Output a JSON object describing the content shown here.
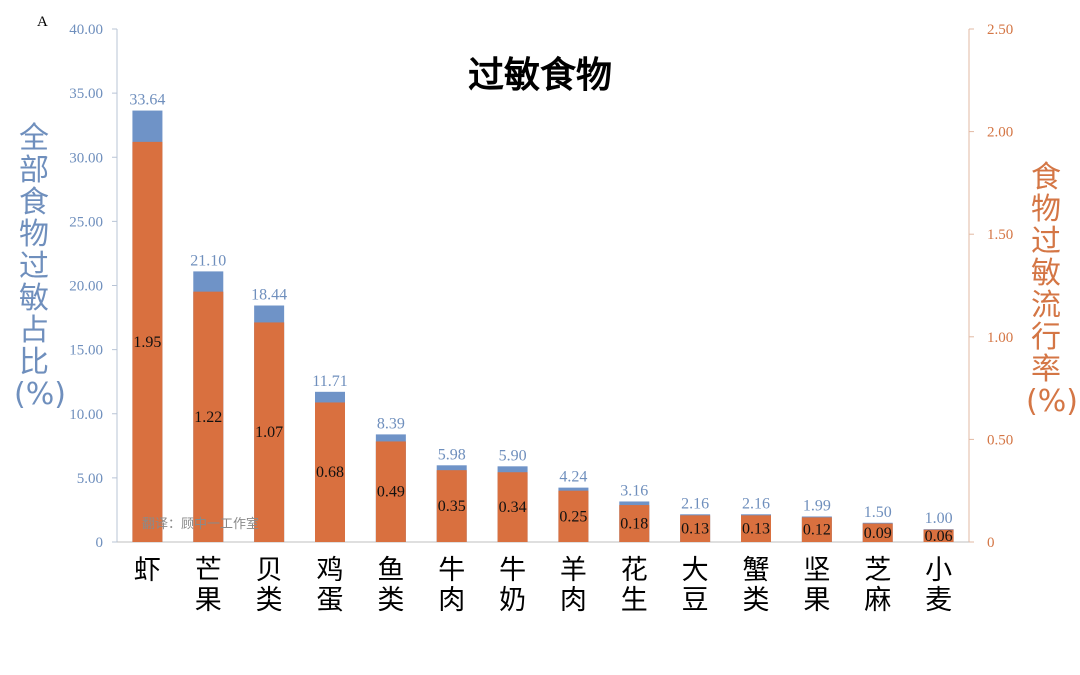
{
  "panel_label": "A",
  "watermark": "翻译：顾中一工作室",
  "colors": {
    "primary_bar": "#6f93c7",
    "secondary_bar": "#d9703f",
    "left_axis": "#6f8fbd",
    "right_axis": "#d47645"
  },
  "chart_data": {
    "type": "bar",
    "title": "过敏食物",
    "categories": [
      "虾",
      "芒果",
      "贝类",
      "鸡蛋",
      "鱼类",
      "牛肉",
      "牛奶",
      "羊肉",
      "花生",
      "大豆",
      "蟹类",
      "坚果",
      "芝麻",
      "小麦"
    ],
    "series": [
      {
        "name": "全部食物过敏占比(%)",
        "axis": "left",
        "values": [
          33.64,
          21.1,
          18.44,
          11.71,
          8.39,
          5.98,
          5.9,
          4.24,
          3.16,
          2.16,
          2.16,
          1.99,
          1.5,
          1.0
        ],
        "labels": [
          "33.64",
          "21.10",
          "18.44",
          "11.71",
          "8.39",
          "5.98",
          "5.90",
          "4.24",
          "3.16",
          "2.16",
          "2.16",
          "1.99",
          "1.50",
          "1.00"
        ]
      },
      {
        "name": "食物过敏流行率(%)",
        "axis": "right",
        "values": [
          1.95,
          1.22,
          1.07,
          0.68,
          0.49,
          0.35,
          0.34,
          0.25,
          0.18,
          0.13,
          0.13,
          0.12,
          0.09,
          0.06
        ],
        "labels": [
          "1.95",
          "1.22",
          "1.07",
          "0.68",
          "0.49",
          "0.35",
          "0.34",
          "0.25",
          "0.18",
          "0.13",
          "0.13",
          "0.12",
          "0.09",
          "0.06"
        ]
      }
    ],
    "y_left": {
      "label": "全部食物过敏占比(%)",
      "lim": [
        0,
        40
      ],
      "ticks": [
        "0",
        "5.00",
        "10.00",
        "15.00",
        "20.00",
        "25.00",
        "30.00",
        "35.00",
        "40.00"
      ]
    },
    "y_right": {
      "label": "食物过敏流行率(%)",
      "lim": [
        0,
        2.5
      ],
      "ticks": [
        "0",
        "0.50",
        "1.00",
        "1.50",
        "2.00",
        "2.50"
      ]
    },
    "grid": false,
    "legend": "none"
  }
}
